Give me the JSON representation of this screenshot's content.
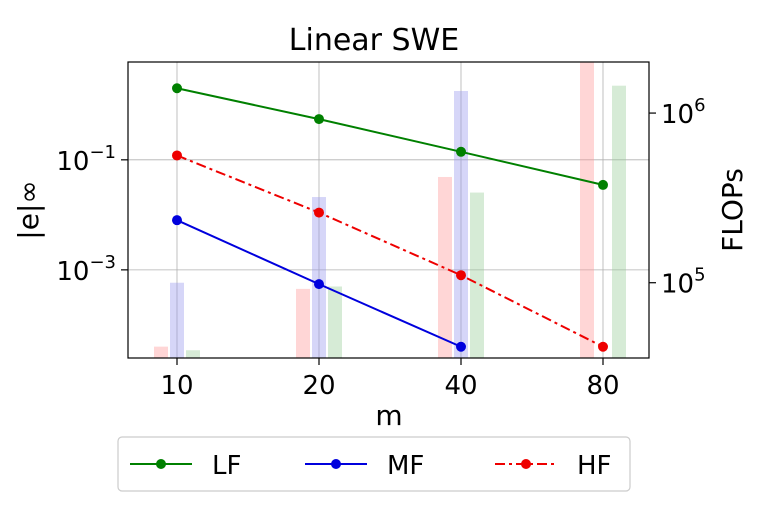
{
  "chart_data": {
    "type": "line",
    "title": "Linear SWE",
    "xlabel": "m",
    "ylabel_left": "|e|∞",
    "ylabel_right": "FLOPs",
    "categories": [
      "10",
      "20",
      "40",
      "80"
    ],
    "y_left_scale": "log",
    "y_left_lim": [
      2.5e-05,
      6
    ],
    "y_left_ticks": [
      {
        "value": 0.1,
        "base": "10",
        "exp": "−1"
      },
      {
        "value": 0.001,
        "base": "10",
        "exp": "−3"
      }
    ],
    "y_right_scale": "log",
    "y_right_lim": [
      36000,
      2000000
    ],
    "y_right_ticks": [
      {
        "value": 100000,
        "base": "10",
        "exp": "5"
      },
      {
        "value": 1000000,
        "base": "10",
        "exp": "6"
      }
    ],
    "grid": true,
    "legend_position": "below",
    "series": [
      {
        "name": "LF",
        "color": "#008000",
        "dash": "solid",
        "values": [
          2.0,
          0.55,
          0.14,
          0.035
        ]
      },
      {
        "name": "MF",
        "color": "#0000dd",
        "dash": "solid",
        "values": [
          0.008,
          0.00055,
          4e-05,
          null
        ]
      },
      {
        "name": "HF",
        "color": "#ee0000",
        "dash": "dashdot",
        "values": [
          0.12,
          0.011,
          0.0008,
          4e-05
        ]
      }
    ],
    "bars": {
      "axis": "right",
      "group_order": [
        "HF",
        "MF",
        "LF"
      ],
      "series": [
        {
          "name": "HF",
          "color": "#ff9999",
          "values": [
            42000,
            92000,
            420000,
            2100000
          ]
        },
        {
          "name": "MF",
          "color": "#9999ee",
          "values": [
            100000,
            320000,
            1350000,
            null
          ]
        },
        {
          "name": "LF",
          "color": "#99cc99",
          "values": [
            40000,
            95000,
            340000,
            1450000
          ]
        }
      ]
    }
  }
}
